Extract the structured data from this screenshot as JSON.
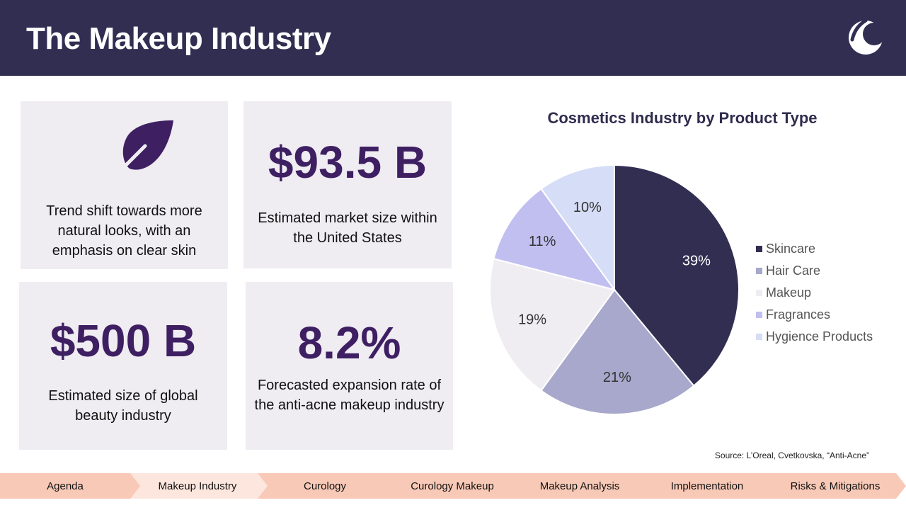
{
  "header": {
    "title": "The Makeup Industry",
    "background_color": "#312e52",
    "logo_icon": "stylized-c-logo"
  },
  "cards": {
    "trend": {
      "icon": "leaf-icon",
      "text": "Trend shift towards more natural looks, with an emphasis on clear skin"
    },
    "us_market": {
      "value": "$93.5 B",
      "text": "Estimated market size within the United States"
    },
    "global_market": {
      "value": "$500 B",
      "text": "Estimated size of global beauty industry"
    },
    "growth": {
      "value": "8.2%",
      "text": "Forecasted expansion rate of the anti-acne makeup industry"
    },
    "value_color": "#3e1f62",
    "card_background": "#efecf2"
  },
  "chart_data": {
    "type": "pie",
    "title": "Cosmetics Industry by Product Type",
    "categories": [
      "Skincare",
      "Hair Care",
      "Makeup",
      "Fragrances",
      "Hygience Products"
    ],
    "values": [
      39,
      21,
      19,
      11,
      10
    ],
    "labels": [
      "39%",
      "21%",
      "19%",
      "11%",
      "10%"
    ],
    "colors": [
      "#312e52",
      "#a7a8cb",
      "#efedf2",
      "#c1bff0",
      "#d6ddf6"
    ],
    "legend_position": "right"
  },
  "source": "Source: L’Oreal, Cvetkovska, “Anti-Acne”",
  "nav": {
    "items": [
      {
        "label": "Agenda"
      },
      {
        "label": "Makeup Industry"
      },
      {
        "label": "Curology"
      },
      {
        "label": "Curology Makeup"
      },
      {
        "label": "Makeup Analysis"
      },
      {
        "label": "Implementation"
      },
      {
        "label": "Risks & Mitigations"
      }
    ],
    "active_index": 1,
    "color": "#f8c9b6",
    "active_color": "#fde6de"
  }
}
